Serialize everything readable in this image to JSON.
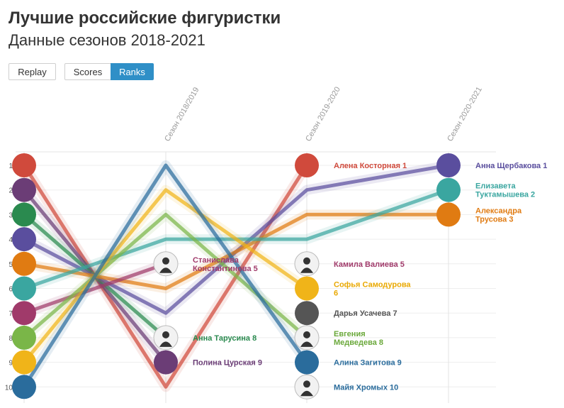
{
  "header": {
    "title": "Лучшие российские фигуристки",
    "subtitle": "Данные сезонов 2018-2021"
  },
  "controls": {
    "replay_label": "Replay",
    "scores_label": "Scores",
    "ranks_label": "Ranks",
    "active": "Ranks"
  },
  "chart_data": {
    "type": "line",
    "title": "Лучшие российские фигуристки",
    "subtitle": "Данные сезонов 2018-2021",
    "x": [
      "",
      "Сезон 2018/2019",
      "Сезон 2019-2020",
      "Сезон 2020-2021"
    ],
    "ylim": [
      1,
      10
    ],
    "y_inverted": true,
    "y_ticks": [
      1,
      2,
      3,
      4,
      5,
      6,
      7,
      8,
      9,
      10
    ],
    "grid": true,
    "series": [
      {
        "name": "Алена Косторная",
        "color": "#d04a3c",
        "values": [
          1,
          10,
          1,
          null
        ],
        "final_label": "Алена Косторная 1"
      },
      {
        "name": "Полина Цурская",
        "color": "#6b3d76",
        "values": [
          2,
          9,
          null,
          null
        ],
        "final_label": "Полина Цурская 9"
      },
      {
        "name": "Анна Тарусина",
        "color": "#2a8a4f",
        "values": [
          3,
          8,
          null,
          null
        ],
        "final_label": "Анна Тарусина 8"
      },
      {
        "name": "Анна Щербакова",
        "color": "#5a4e9e",
        "values": [
          4,
          7,
          2,
          1
        ],
        "final_label": "Анна Щербакова 1"
      },
      {
        "name": "Александра Трусова",
        "color": "#e07b12",
        "values": [
          5,
          6,
          3,
          3
        ],
        "final_label": "Александра Трусова 3"
      },
      {
        "name": "Елизавета Туктамышева",
        "color": "#3aa6a0",
        "values": [
          6,
          4,
          4,
          2
        ],
        "final_label": "Елизавета Туктамышева 2"
      },
      {
        "name": "Станислава Константинова",
        "color": "#a03a6a",
        "values": [
          7,
          5,
          null,
          null
        ],
        "final_label": "Станислава Константинова 5"
      },
      {
        "name": "Евгения Медведева",
        "color": "#7ab648",
        "values": [
          8,
          3,
          8,
          null
        ],
        "final_label": "Евгения Медведева 8"
      },
      {
        "name": "Софья Самодурова",
        "color": "#f0b419",
        "values": [
          9,
          2,
          6,
          null
        ],
        "final_label": "Софья Самодурова 6"
      },
      {
        "name": "Алина Загитова",
        "color": "#2a6c9c",
        "values": [
          10,
          1,
          9,
          null
        ],
        "final_label": "Алина Загитова 9"
      },
      {
        "name": "Камила Валиева",
        "color": "#a03a6a",
        "values": [
          null,
          null,
          5,
          null
        ],
        "final_label": "Камила Валиева 5"
      },
      {
        "name": "Дарья Усачева",
        "color": "#555555",
        "values": [
          null,
          null,
          7,
          null
        ],
        "final_label": "Дарья Усачева 7"
      },
      {
        "name": "Майя Хромых",
        "color": "#2a6c9c",
        "values": [
          null,
          null,
          10,
          null
        ],
        "final_label": "Майя Хромых 10"
      }
    ],
    "labels": [
      {
        "text": [
          "Станислава",
          "Константинова 5"
        ],
        "color": "#a03a6a",
        "x": 1,
        "y": 5
      },
      {
        "text": [
          "Анна Тарусина 8"
        ],
        "color": "#2a8a4f",
        "x": 1,
        "y": 8
      },
      {
        "text": [
          "Полина Цурская 9"
        ],
        "color": "#6b3d76",
        "x": 1,
        "y": 9
      },
      {
        "text": [
          "Алена Косторная 1"
        ],
        "color": "#d04a3c",
        "x": 2,
        "y": 1
      },
      {
        "text": [
          "Камила Валиева 5"
        ],
        "color": "#a03a6a",
        "x": 2,
        "y": 5
      },
      {
        "text": [
          "Софья Самодурова",
          "6"
        ],
        "color": "#e9a800",
        "x": 2,
        "y": 6
      },
      {
        "text": [
          "Дарья Усачева 7"
        ],
        "color": "#555555",
        "x": 2,
        "y": 7
      },
      {
        "text": [
          "Евгения",
          "Медведева 8"
        ],
        "color": "#6aa83a",
        "x": 2,
        "y": 8
      },
      {
        "text": [
          "Алина Загитова 9"
        ],
        "color": "#2a6c9c",
        "x": 2,
        "y": 9
      },
      {
        "text": [
          "Майя Хромых 10"
        ],
        "color": "#2a6c9c",
        "x": 2,
        "y": 10
      },
      {
        "text": [
          "Анна Щербакова 1"
        ],
        "color": "#5a4e9e",
        "x": 3,
        "y": 1
      },
      {
        "text": [
          "Елизавета",
          "Туктамышева 2"
        ],
        "color": "#3aa6a0",
        "x": 3,
        "y": 2
      },
      {
        "text": [
          "Александра",
          "Трусова 3"
        ],
        "color": "#e07b12",
        "x": 3,
        "y": 3
      }
    ],
    "markers": [
      {
        "x": 0,
        "y": 1,
        "color": "#d04a3c"
      },
      {
        "x": 0,
        "y": 2,
        "color": "#6b3d76"
      },
      {
        "x": 0,
        "y": 3,
        "color": "#2a8a4f"
      },
      {
        "x": 0,
        "y": 4,
        "color": "#5a4e9e"
      },
      {
        "x": 0,
        "y": 5,
        "color": "#e07b12"
      },
      {
        "x": 0,
        "y": 6,
        "color": "#3aa6a0"
      },
      {
        "x": 0,
        "y": 7,
        "color": "#a03a6a"
      },
      {
        "x": 0,
        "y": 8,
        "color": "#7ab648"
      },
      {
        "x": 0,
        "y": 9,
        "color": "#f0b419"
      },
      {
        "x": 0,
        "y": 10,
        "color": "#2a6c9c"
      },
      {
        "x": 1,
        "y": 5,
        "color": "#e8e8e8",
        "photo": true
      },
      {
        "x": 1,
        "y": 8,
        "color": "#e8e8e8",
        "photo": true
      },
      {
        "x": 1,
        "y": 9,
        "color": "#6b3d76"
      },
      {
        "x": 2,
        "y": 1,
        "color": "#d04a3c"
      },
      {
        "x": 2,
        "y": 5,
        "color": "#e8e8e8",
        "photo": true
      },
      {
        "x": 2,
        "y": 6,
        "color": "#f0b419"
      },
      {
        "x": 2,
        "y": 7,
        "color": "#555555"
      },
      {
        "x": 2,
        "y": 8,
        "color": "#e8e8e8",
        "photo": true
      },
      {
        "x": 2,
        "y": 9,
        "color": "#2a6c9c"
      },
      {
        "x": 2,
        "y": 10,
        "color": "#e8e8e8",
        "photo": true
      },
      {
        "x": 3,
        "y": 1,
        "color": "#5a4e9e"
      },
      {
        "x": 3,
        "y": 2,
        "color": "#3aa6a0"
      },
      {
        "x": 3,
        "y": 3,
        "color": "#e07b12"
      }
    ]
  }
}
